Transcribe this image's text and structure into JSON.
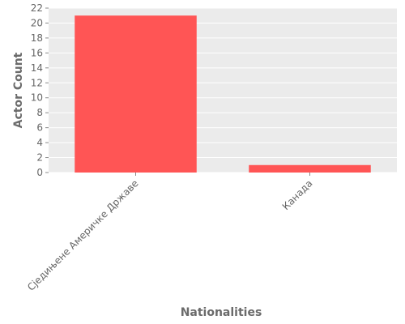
{
  "chart_data": {
    "type": "bar",
    "categories": [
      "Сједињене Америчке Државе",
      "Канада"
    ],
    "values": [
      21,
      1
    ],
    "title": "",
    "xlabel": "Nationalities",
    "ylabel": "Actor Count",
    "ylim": [
      0,
      22
    ],
    "yticks": [
      0,
      2,
      4,
      6,
      8,
      10,
      12,
      14,
      16,
      18,
      20,
      22
    ],
    "grid": true,
    "colors": {
      "bar": "#ff5555",
      "panel": "#ebebeb",
      "grid": "#ffffff",
      "text": "#666666"
    }
  }
}
